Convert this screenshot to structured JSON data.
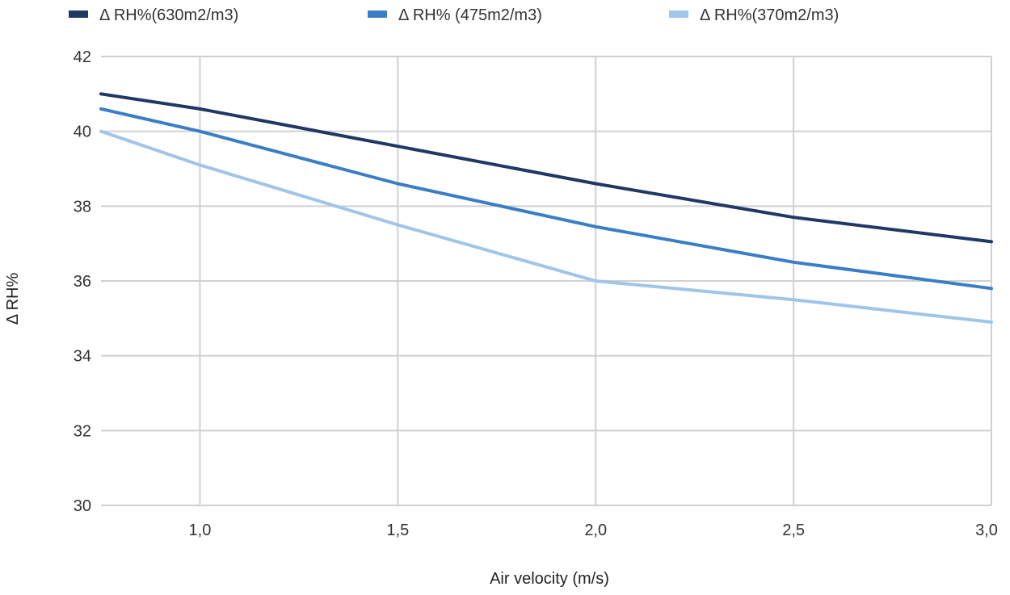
{
  "chart_data": {
    "type": "line",
    "title": "",
    "xlabel": "Air velocity (m/s)",
    "ylabel": "Δ RH%",
    "xlim": [
      0.75,
      3.0
    ],
    "ylim": [
      30,
      42
    ],
    "x_ticks": [
      {
        "value": 1.0,
        "label": "1,0"
      },
      {
        "value": 1.5,
        "label": "1,5"
      },
      {
        "value": 2.0,
        "label": "2,0"
      },
      {
        "value": 2.5,
        "label": "2,5"
      },
      {
        "value": 3.0,
        "label": "3,0"
      }
    ],
    "y_ticks": [
      {
        "value": 30,
        "label": "30"
      },
      {
        "value": 32,
        "label": "32"
      },
      {
        "value": 34,
        "label": "34"
      },
      {
        "value": 36,
        "label": "36"
      },
      {
        "value": 38,
        "label": "38"
      },
      {
        "value": 40,
        "label": "40"
      },
      {
        "value": 42,
        "label": "42"
      }
    ],
    "x": [
      0.75,
      1.0,
      1.5,
      2.0,
      2.5,
      3.0
    ],
    "legend_position": "top-left",
    "grid": true,
    "series": [
      {
        "name": "Δ RH%(630m2/m3)",
        "color": "#1f3864",
        "values": [
          41.0,
          40.6,
          39.6,
          38.6,
          37.7,
          37.05
        ]
      },
      {
        "name": "Δ RH% (475m2/m3)",
        "color": "#3a7ec6",
        "values": [
          40.6,
          40.0,
          38.6,
          37.45,
          36.5,
          35.8
        ]
      },
      {
        "name": "Δ RH%(370m2/m3)",
        "color": "#9fc5e8",
        "values": [
          40.0,
          39.1,
          37.5,
          36.0,
          35.5,
          34.9
        ]
      }
    ]
  }
}
